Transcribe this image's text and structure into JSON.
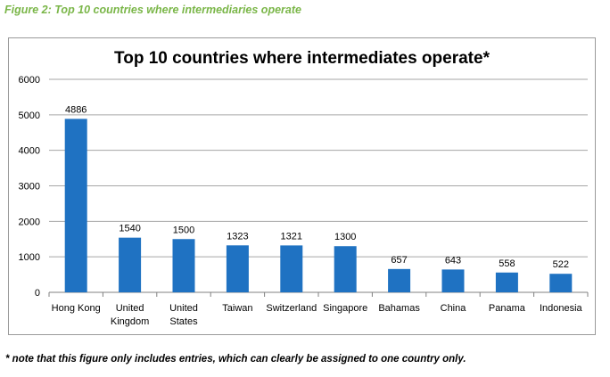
{
  "figure_caption": "Figure 2: Top 10 countries where intermediaries operate",
  "footnote": "* note that this figure only includes entries, which can clearly be assigned to one country only.",
  "colors": {
    "bar": "#1f72c2",
    "caption": "#7ab648",
    "grid": "#a6a6a6"
  },
  "chart_data": {
    "type": "bar",
    "title": "Top 10 countries where intermediates operate*",
    "xlabel": "",
    "ylabel": "",
    "ylim": [
      0,
      6000
    ],
    "yticks": [
      0,
      1000,
      2000,
      3000,
      4000,
      5000,
      6000
    ],
    "grid": true,
    "legend": "none",
    "categories": [
      [
        "Hong Kong"
      ],
      [
        "United",
        "Kingdom"
      ],
      [
        "United",
        "States"
      ],
      [
        "Taiwan"
      ],
      [
        "Switzerland"
      ],
      [
        "Singapore"
      ],
      [
        "Bahamas"
      ],
      [
        "China"
      ],
      [
        "Panama"
      ],
      [
        "Indonesia"
      ]
    ],
    "values": [
      4886,
      1540,
      1500,
      1323,
      1321,
      1300,
      657,
      643,
      558,
      522
    ]
  }
}
